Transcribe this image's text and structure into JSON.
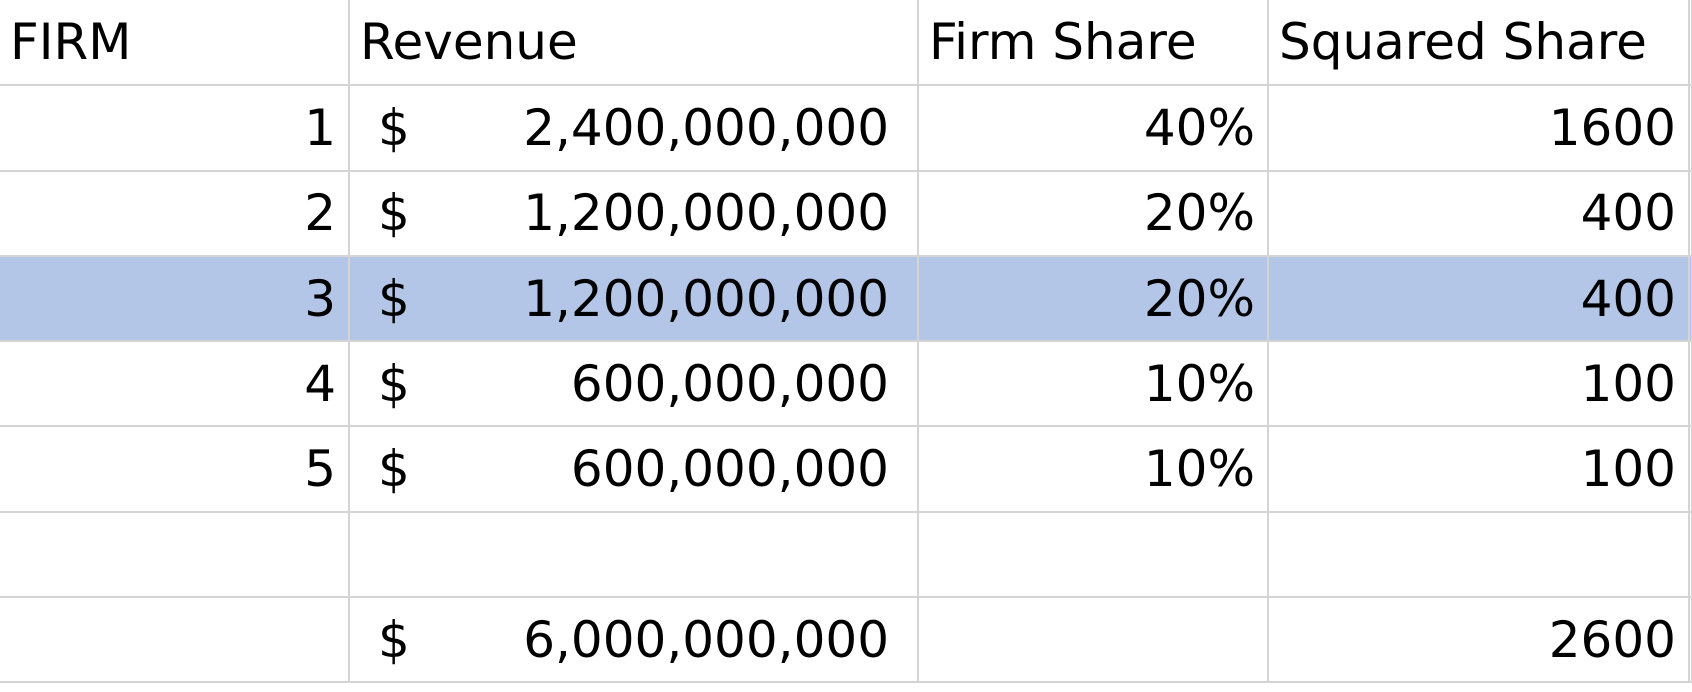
{
  "headers": [
    "FIRM",
    "Revenue",
    "Firm Share",
    "Squared Share"
  ],
  "currency_symbol": "$",
  "rows": [
    {
      "firm": "1",
      "revenue": "2,400,000,000",
      "share": "40%",
      "squared": "1600"
    },
    {
      "firm": "2",
      "revenue": "1,200,000,000",
      "share": "20%",
      "squared": "400"
    },
    {
      "firm": "3",
      "revenue": "1,200,000,000",
      "share": "20%",
      "squared": "400"
    },
    {
      "firm": "4",
      "revenue": "600,000,000",
      "share": "10%",
      "squared": "100"
    },
    {
      "firm": "5",
      "revenue": "600,000,000",
      "share": "10%",
      "squared": "100"
    }
  ],
  "totals": {
    "revenue": "6,000,000,000",
    "squared": "2600"
  },
  "selected_row_color": "#b4c6e7"
}
